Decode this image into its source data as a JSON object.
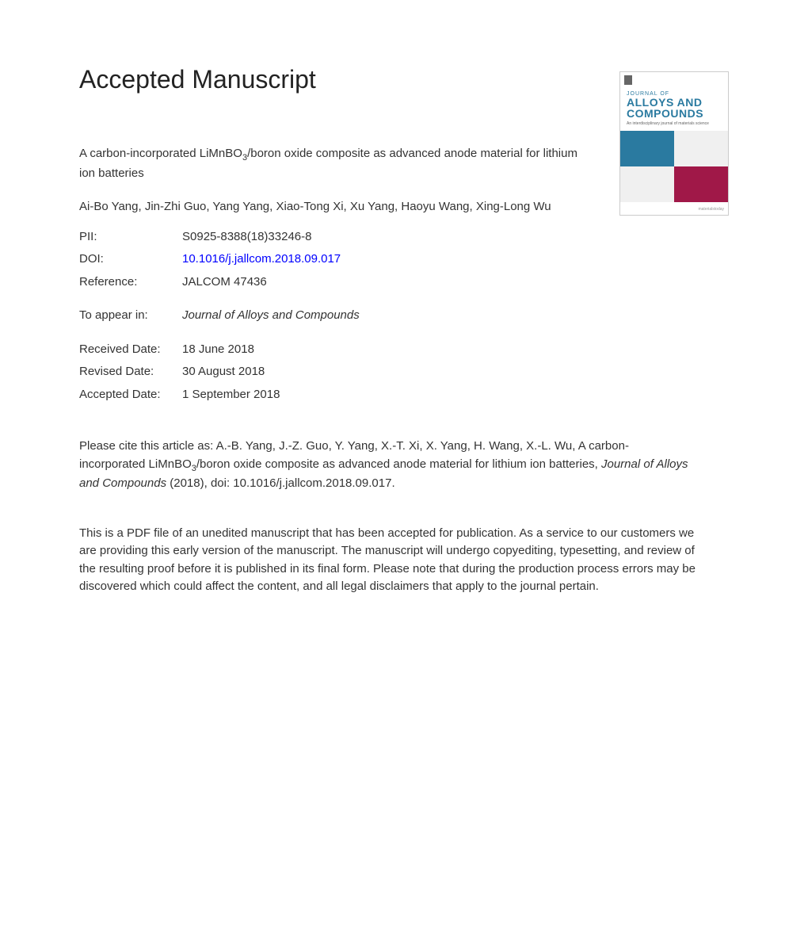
{
  "header": {
    "title": "Accepted Manuscript"
  },
  "journal_cover": {
    "prefix": "JOURNAL OF",
    "title_line1": "ALLOYS AND",
    "title_line2": "COMPOUNDS",
    "footer": "materialstoday",
    "colors": {
      "teal": "#2a7aa0",
      "maroon": "#a01848",
      "light": "#f0f0f0"
    }
  },
  "article": {
    "title_part1": "A carbon-incorporated LiMnBO",
    "title_subscript": "3",
    "title_part2": "/boron oxide composite as advanced anode material for lithium ion batteries",
    "authors": "Ai-Bo Yang, Jin-Zhi Guo, Yang Yang, Xiao-Tong Xi, Xu Yang, Haoyu Wang, Xing-Long Wu"
  },
  "metadata": {
    "pii_label": "PII:",
    "pii_value": "S0925-8388(18)33246-8",
    "doi_label": "DOI:",
    "doi_value": "10.1016/j.jallcom.2018.09.017",
    "reference_label": "Reference:",
    "reference_value": "JALCOM 47436",
    "appear_label": "To appear in:",
    "appear_value": "Journal of Alloys and Compounds",
    "received_label": "Received Date:",
    "received_value": "18 June 2018",
    "revised_label": "Revised Date:",
    "revised_value": "30 August 2018",
    "accepted_label": "Accepted Date:",
    "accepted_value": "1 September 2018"
  },
  "citation": {
    "prefix": "Please cite this article as: A.-B. Yang, J.-Z. Guo, Y. Yang, X.-T. Xi, X. Yang, H. Wang, X.-L. Wu, A carbon-incorporated LiMnBO",
    "subscript": "3",
    "middle": "/boron oxide composite as advanced anode material for lithium ion batteries, ",
    "journal": "Journal of Alloys and Compounds",
    "suffix": " (2018), doi: 10.1016/j.jallcom.2018.09.017."
  },
  "disclaimer": {
    "text": "This is a PDF file of an unedited manuscript that has been accepted for publication. As a service to our customers we are providing this early version of the manuscript. The manuscript will undergo copyediting, typesetting, and review of the resulting proof before it is published in its final form. Please note that during the production process errors may be discovered which could affect the content, and all legal disclaimers that apply to the journal pertain."
  }
}
